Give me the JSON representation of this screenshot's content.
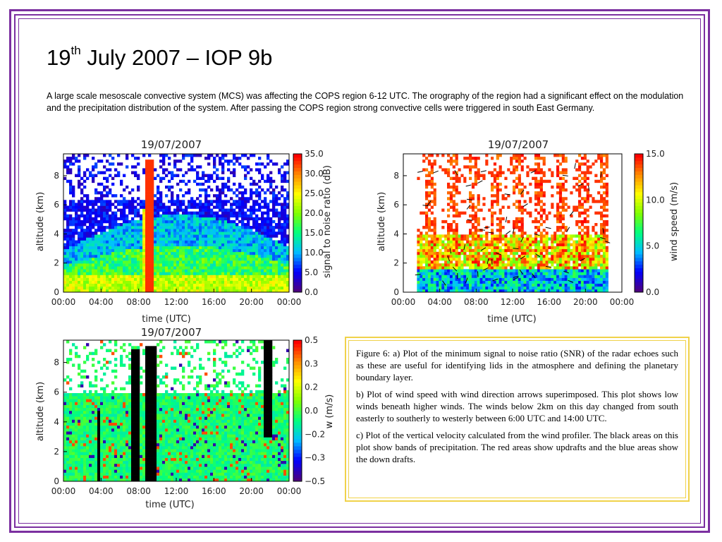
{
  "slide": {
    "title_main": "19",
    "title_sup": "th",
    "title_rest": " July 2007 – IOP 9b",
    "intro": "A large scale mesoscale convective system (MCS) was affecting the COPS region 6-12 UTC. The orography of the region  had a significant effect on the modulation and the precipitation distribution of the system. After passing the COPS region strong convective cells were triggered in south East Germany."
  },
  "caption": {
    "a": "Figure 6: a) Plot of the minimum signal to noise ratio (SNR) of the radar echoes such as these are useful for identifying lids in the atmosphere and defining the planetary boundary layer.",
    "b": " b) Plot of wind speed with wind direction arrows superimposed. This plot shows low winds beneath higher winds. The winds below 2km on this day changed from south easterly to southerly to westerly between 6:00 UTC and 14:00 UTC.",
    "c": "c) Plot of the vertical velocity calculated from the wind profiler. The black areas on this plot show bands of precipitation. The red areas show updrafts and the blue areas show the down drafts."
  },
  "chart_data": [
    {
      "type": "heatmap",
      "title": "19/07/2007",
      "xlabel": "time (UTC)",
      "ylabel": "altitude (km)",
      "x_ticks": [
        "00:00",
        "04:00",
        "08:00",
        "12:00",
        "16:00",
        "20:00",
        "00:00"
      ],
      "y_ticks": [
        "0",
        "2",
        "4",
        "6",
        "8"
      ],
      "ylim": [
        0,
        9.5
      ],
      "colorbar_label": "signal to noise ratio (dB)",
      "colorbar_ticks": [
        "35.0",
        "30.0",
        "25.0",
        "20.0",
        "15.0",
        "10.0",
        "5.0",
        "0.0"
      ],
      "colorbar_range": [
        0,
        35
      ],
      "colors": [
        "#4b0082",
        "#0000ff",
        "#00bfff",
        "#00ff7f",
        "#7fff00",
        "#ffff00",
        "#ff8c00",
        "#ff0000"
      ]
    },
    {
      "type": "heatmap",
      "title": "19/07/2007",
      "xlabel": "time (UTC)",
      "ylabel": "altitude (km)",
      "x_ticks": [
        "00:00",
        "04:00",
        "08:00",
        "12:00",
        "16:00",
        "20:00",
        "00:00"
      ],
      "y_ticks": [
        "0",
        "2",
        "4",
        "6",
        "8"
      ],
      "ylim": [
        0,
        9.5
      ],
      "colorbar_label": "wind speed (m/s)",
      "colorbar_ticks": [
        "15.0",
        "10.0",
        "5.0",
        "0.0"
      ],
      "colorbar_range": [
        0,
        15
      ],
      "colors": [
        "#4b0082",
        "#0000ff",
        "#00bfff",
        "#00ff7f",
        "#7fff00",
        "#ffff00",
        "#ff8c00",
        "#ff0000"
      ]
    },
    {
      "type": "heatmap",
      "title": "19/07/2007",
      "xlabel": "time (UTC)",
      "ylabel": "altitude (km)",
      "x_ticks": [
        "00:00",
        "04:00",
        "08:00",
        "12:00",
        "16:00",
        "20:00",
        "00:00"
      ],
      "y_ticks": [
        "0",
        "2",
        "4",
        "6",
        "8"
      ],
      "ylim": [
        0,
        9.5
      ],
      "colorbar_label": "w (m/s)",
      "colorbar_ticks": [
        "0.5",
        "0.3",
        "0.2",
        "0.0",
        "−0.2",
        "−0.3",
        "−0.5"
      ],
      "colorbar_range": [
        -0.5,
        0.5
      ],
      "colors": [
        "#4b0082",
        "#0000ff",
        "#00bfff",
        "#00ff7f",
        "#7fff00",
        "#ffff00",
        "#ff8c00",
        "#ff0000"
      ]
    }
  ]
}
